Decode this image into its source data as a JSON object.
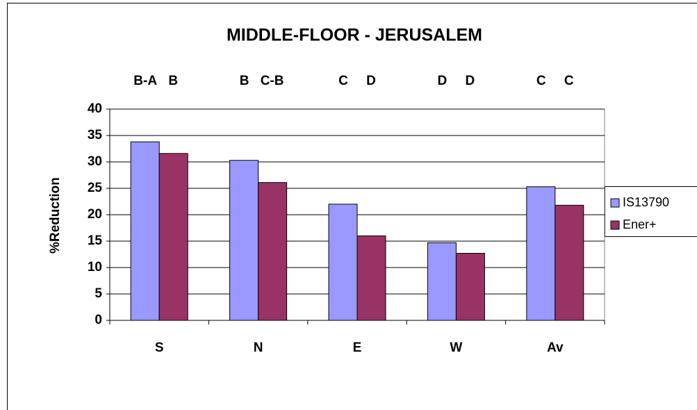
{
  "chart_data": {
    "type": "bar",
    "title": "MIDDLE-FLOOR - JERUSALEM",
    "y_label": "%Reduction",
    "categories": [
      "S",
      "N",
      "E",
      "W",
      "Av"
    ],
    "annotations": [
      [
        "B-A",
        "B"
      ],
      [
        "B",
        "C-B"
      ],
      [
        "C",
        "D"
      ],
      [
        "D",
        "D"
      ],
      [
        "C",
        "C"
      ]
    ],
    "series": [
      {
        "name": "IS13790",
        "color": "#9999ff",
        "values": [
          33.8,
          30.3,
          22.0,
          14.7,
          25.3
        ]
      },
      {
        "name": "Ener+",
        "color": "#993366",
        "values": [
          31.6,
          26.1,
          16.0,
          12.7,
          21.8
        ]
      }
    ],
    "ylim": [
      0,
      40
    ],
    "yticks": [
      0,
      5,
      10,
      15,
      20,
      25,
      30,
      35,
      40
    ],
    "grid": true,
    "legend": "right"
  }
}
